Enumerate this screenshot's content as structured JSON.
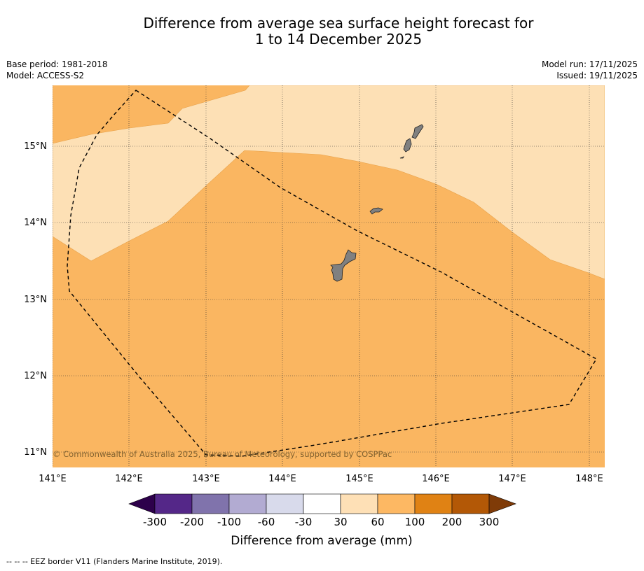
{
  "header": {
    "title_line1": "Difference from average sea surface height forecast for",
    "title_line2": "1 to 14 December 2025",
    "base_period": "Base period: 1981-2018",
    "model": "Model: ACCESS-S2",
    "model_run": "Model run: 17/11/2025",
    "issued": "Issued: 19/11/2025"
  },
  "map": {
    "copyright": "© Commonwealth of Australia 2025, Bureau of Meteorology, supported by COSPPac",
    "lon_labels": [
      "141°E",
      "142°E",
      "143°E",
      "144°E",
      "145°E",
      "146°E",
      "147°E",
      "148°E"
    ],
    "lat_labels": [
      "15°N",
      "14°N",
      "13°N",
      "12°N",
      "11°N"
    ],
    "colors": {
      "band_30_60": "#fde0b5",
      "band_60_100": "#fab661",
      "land": "#808080"
    }
  },
  "legend": {
    "title": "Difference from average (mm)",
    "ticks": [
      "-300",
      "-200",
      "-100",
      "-60",
      "-30",
      "30",
      "60",
      "100",
      "200",
      "300"
    ],
    "colors": [
      "#2d004b",
      "#542788",
      "#8073ac",
      "#b2abd2",
      "#d8daeb",
      "#ffffff",
      "#fee0b6",
      "#fdb863",
      "#e08214",
      "#b35806",
      "#7f3b08"
    ]
  },
  "footer": {
    "eez_note": "--  --  -- EEZ border V11 (Flanders Marine Institute, 2019)."
  }
}
